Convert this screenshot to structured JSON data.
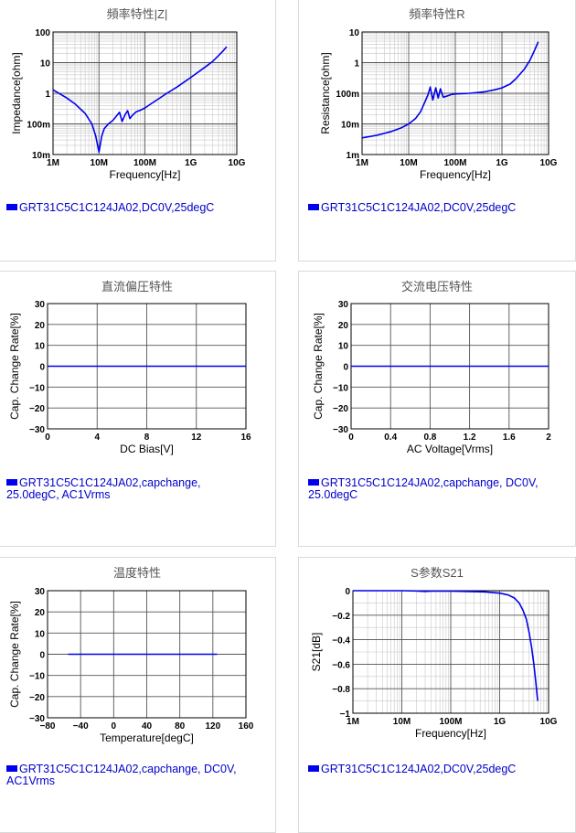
{
  "colors": {
    "series": "#0000ee",
    "legend_text": "#0000cc",
    "grid_major": "#555555",
    "grid_minor": "#c8c8c8"
  },
  "panels": [
    {
      "title": "頻率特性|Z|",
      "legend": "GRT31C5C1C124JA02,DC0V,25degC"
    },
    {
      "title": "頻率特性R",
      "legend": "GRT31C5C1C124JA02,DC0V,25degC"
    },
    {
      "title": "直流偏圧特性",
      "legend": "GRT31C5C1C124JA02,capchange,\n25.0degC, AC1Vrms"
    },
    {
      "title": "交流电压特性",
      "legend": "GRT31C5C1C124JA02,capchange, DC0V,\n25.0degC"
    },
    {
      "title": "温度特性",
      "legend": "GRT31C5C1C124JA02,capchange, DC0V,\nAC1Vrms"
    },
    {
      "title": "S参数S21",
      "legend": "GRT31C5C1C124JA02,DC0V,25degC"
    }
  ],
  "chart_data": [
    {
      "type": "line",
      "title": "頻率特性|Z|",
      "xlabel": "Frequency[Hz]",
      "ylabel": "Impedance[ohm]",
      "xscale": "log",
      "yscale": "log",
      "xlim": [
        1000000.0,
        10000000000.0
      ],
      "ylim": [
        0.01,
        100
      ],
      "xticks": [
        "1M",
        "10M",
        "100M",
        "1G",
        "10G"
      ],
      "yticks": [
        "100",
        "10",
        "1",
        "100m",
        "10m"
      ],
      "series": [
        {
          "name": "GRT31C5C1C124JA02,DC0V,25degC",
          "x": [
            1000000.0,
            2000000.0,
            3000000.0,
            5000000.0,
            7000000.0,
            8500000.0,
            10000000.0,
            11500000.0,
            13000000.0,
            16000000.0,
            20000000.0,
            24000000.0,
            28000000.0,
            32000000.0,
            37000000.0,
            42000000.0,
            47000000.0,
            55000000.0,
            65000000.0,
            80000000.0,
            100000000.0,
            150000000.0,
            200000000.0,
            300000000.0,
            500000000.0,
            1000000000.0,
            2000000000.0,
            3000000000.0,
            4000000000.0,
            5000000000.0,
            6000000000.0
          ],
          "y": [
            1.3,
            0.7,
            0.45,
            0.22,
            0.1,
            0.04,
            0.012,
            0.04,
            0.07,
            0.1,
            0.13,
            0.18,
            0.24,
            0.12,
            0.2,
            0.27,
            0.15,
            0.2,
            0.25,
            0.28,
            0.33,
            0.5,
            0.66,
            1.0,
            1.6,
            3.3,
            7,
            11,
            17,
            24,
            33
          ]
        }
      ]
    },
    {
      "type": "line",
      "title": "頻率特性R",
      "xlabel": "Frequency[Hz]",
      "ylabel": "Resistance[ohm]",
      "xscale": "log",
      "yscale": "log",
      "xlim": [
        1000000.0,
        10000000000.0
      ],
      "ylim": [
        0.001,
        10
      ],
      "xticks": [
        "1M",
        "10M",
        "100M",
        "1G",
        "10G"
      ],
      "yticks": [
        "10",
        "1",
        "100m",
        "10m",
        "1m"
      ],
      "series": [
        {
          "name": "GRT31C5C1C124JA02,DC0V,25degC",
          "x": [
            1000000.0,
            2000000.0,
            4000000.0,
            7000000.0,
            10000000.0,
            14000000.0,
            18000000.0,
            22000000.0,
            26000000.0,
            29000000.0,
            33000000.0,
            38000000.0,
            43000000.0,
            48000000.0,
            55000000.0,
            65000000.0,
            80000000.0,
            100000000.0,
            200000000.0,
            400000000.0,
            700000000.0,
            1000000000.0,
            1500000000.0,
            2000000000.0,
            3000000000.0,
            4000000000.0,
            5000000000.0,
            6000000000.0
          ],
          "y": [
            0.0035,
            0.0042,
            0.0055,
            0.0075,
            0.01,
            0.015,
            0.025,
            0.05,
            0.09,
            0.16,
            0.06,
            0.15,
            0.07,
            0.14,
            0.075,
            0.08,
            0.09,
            0.095,
            0.1,
            0.11,
            0.13,
            0.15,
            0.2,
            0.3,
            0.6,
            1.2,
            2.5,
            4.8
          ]
        }
      ]
    },
    {
      "type": "line",
      "title": "直流偏圧特性",
      "xlabel": "DC Bias[V]",
      "ylabel": "Cap. Change Rate[%]",
      "xlim": [
        0,
        16
      ],
      "ylim": [
        -30,
        30
      ],
      "xticks": [
        "0",
        "4",
        "8",
        "12",
        "16"
      ],
      "yticks": [
        "30",
        "20",
        "10",
        "0",
        "−10",
        "−20",
        "−30"
      ],
      "series": [
        {
          "name": "GRT31C5C1C124JA02,capchange,25.0degC, AC1Vrms",
          "x": [
            0,
            16
          ],
          "y": [
            0,
            0
          ]
        }
      ]
    },
    {
      "type": "line",
      "title": "交流电压特性",
      "xlabel": "AC Voltage[Vrms]",
      "ylabel": "Cap. Change Rate[%]",
      "xlim": [
        0,
        2
      ],
      "ylim": [
        -30,
        30
      ],
      "xticks": [
        "0",
        "0.4",
        "0.8",
        "1.2",
        "1.6",
        "2"
      ],
      "yticks": [
        "30",
        "20",
        "10",
        "0",
        "−10",
        "−20",
        "−30"
      ],
      "series": [
        {
          "name": "GRT31C5C1C124JA02,capchange, DC0V,25.0degC",
          "x": [
            0,
            2
          ],
          "y": [
            0,
            0
          ]
        }
      ]
    },
    {
      "type": "line",
      "title": "温度特性",
      "xlabel": "Temperature[degC]",
      "ylabel": "Cap. Change Rate[%]",
      "xlim": [
        -80,
        160
      ],
      "ylim": [
        -30,
        30
      ],
      "xticks": [
        "−80",
        "−40",
        "0",
        "40",
        "80",
        "120",
        "160"
      ],
      "yticks": [
        "30",
        "20",
        "10",
        "0",
        "−10",
        "−20",
        "−30"
      ],
      "series": [
        {
          "name": "GRT31C5C1C124JA02,capchange, DC0V,AC1Vrms",
          "x": [
            -55,
            125
          ],
          "y": [
            0,
            0
          ]
        }
      ]
    },
    {
      "type": "line",
      "title": "S参数S21",
      "xlabel": "Frequency[Hz]",
      "ylabel": "S21[dB]",
      "xscale": "log",
      "xlim": [
        1000000.0,
        10000000000.0
      ],
      "ylim": [
        -1,
        0
      ],
      "xticks": [
        "1M",
        "10M",
        "100M",
        "1G",
        "10G"
      ],
      "yticks": [
        "0",
        "−0.2",
        "−0.4",
        "−0.6",
        "−0.8",
        "−1"
      ],
      "series": [
        {
          "name": "GRT31C5C1C124JA02,DC0V,25degC",
          "x": [
            1000000.0,
            10000000.0,
            20000000.0,
            30000000.0,
            40000000.0,
            60000000.0,
            100000000.0,
            200000000.0,
            500000000.0,
            1000000000.0,
            1500000000.0,
            2000000000.0,
            2500000000.0,
            3000000000.0,
            3500000000.0,
            4000000000.0,
            4500000000.0,
            5000000000.0,
            5500000000.0,
            6000000000.0
          ],
          "y": [
            0,
            0,
            -0.002,
            -0.006,
            -0.003,
            -0.004,
            -0.004,
            -0.006,
            -0.01,
            -0.02,
            -0.035,
            -0.06,
            -0.1,
            -0.16,
            -0.23,
            -0.34,
            -0.46,
            -0.6,
            -0.75,
            -0.9
          ]
        }
      ]
    }
  ]
}
